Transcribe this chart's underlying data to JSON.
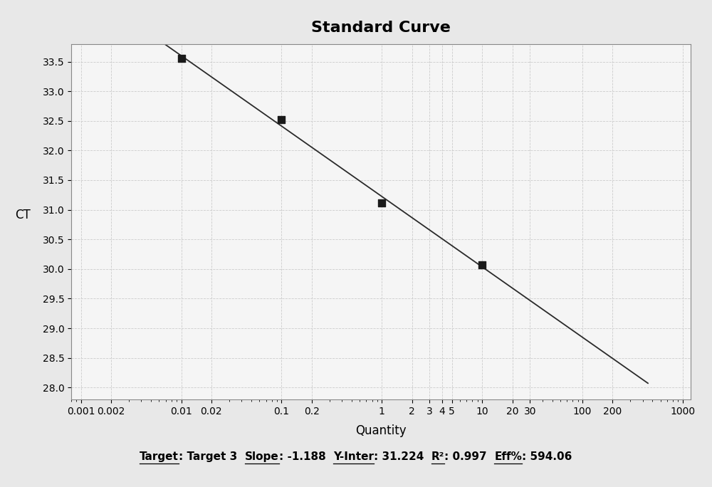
{
  "title": "Standard Curve",
  "xlabel": "Quantity",
  "ylabel": "CT",
  "x_data": [
    0.01,
    0.1,
    1,
    10
  ],
  "y_data": [
    33.56,
    32.52,
    31.12,
    30.07
  ],
  "slope": -1.188,
  "y_inter": 31.224,
  "r2": 0.997,
  "eff": 594.06,
  "x_ticks": [
    0.001,
    0.002,
    0.01,
    0.02,
    0.1,
    0.2,
    1,
    2,
    3,
    4,
    5,
    10,
    20,
    30,
    100,
    200,
    1000
  ],
  "x_tick_labels": [
    "0.001",
    "0.002",
    "0.01",
    "0.02",
    "0.1",
    "0.2",
    "1",
    "2",
    "3",
    "4",
    "5",
    "10",
    "20",
    "30",
    "100",
    "200",
    "1000"
  ],
  "ylim": [
    27.8,
    33.8
  ],
  "y_ticks": [
    28.0,
    28.5,
    29.0,
    29.5,
    30.0,
    30.5,
    31.0,
    31.5,
    32.0,
    32.5,
    33.0,
    33.5
  ],
  "bg_color": "#e8e8e8",
  "plot_bg_color": "#f5f5f5",
  "line_color": "#2a2a2a",
  "marker_color": "#1a1a1a",
  "grid_color": "#cccccc",
  "title_fontsize": 16,
  "label_fontsize": 12,
  "tick_fontsize": 10,
  "ann_fontsize": 11,
  "segments": [
    [
      "Target",
      true
    ],
    [
      ": Target 3  ",
      false
    ],
    [
      "Slope",
      true
    ],
    [
      ": -1.188  ",
      false
    ],
    [
      "Y-Inter",
      true
    ],
    [
      ": 31.224  ",
      false
    ],
    [
      "R²",
      true
    ],
    [
      ": 0.997  ",
      false
    ],
    [
      "Eff%",
      true
    ],
    [
      ": 594.06",
      false
    ]
  ]
}
